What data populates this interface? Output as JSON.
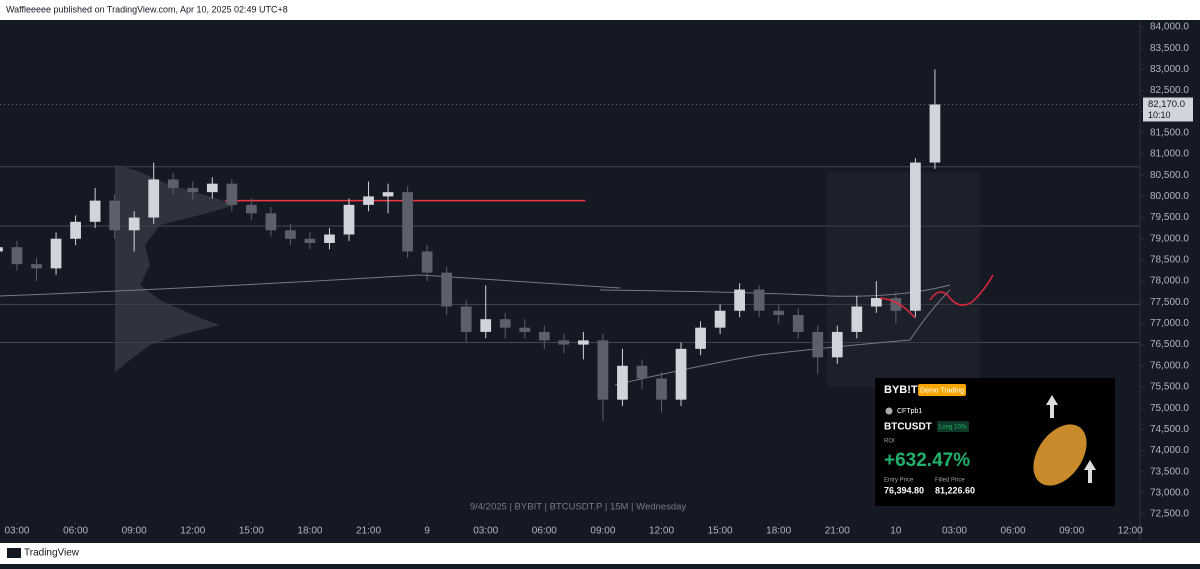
{
  "header": {
    "text": "Waffleeeee published on TradingView.com, Apr 10, 2025 02:49 UTC+8"
  },
  "chart_data": {
    "type": "candlestick",
    "watermark": "9/4/2025 | BYBIT | BTCUSDT.P | 15M | Wednesday",
    "up_color": "#d1d4dc",
    "down_color": "#5d606b",
    "x": [
      -1,
      0,
      1,
      2,
      3,
      4,
      5,
      6,
      7,
      8,
      9,
      10,
      11,
      12,
      13,
      14,
      15,
      16,
      17,
      18,
      19,
      20,
      21,
      22,
      23,
      24,
      25,
      26,
      27,
      28,
      29,
      30,
      31,
      32,
      33,
      34,
      35,
      36,
      37,
      38,
      39,
      40,
      41,
      42,
      43,
      44,
      45,
      46,
      47
    ],
    "candles": [
      [
        78700,
        78950,
        78550,
        78800
      ],
      [
        78800,
        78950,
        78250,
        78400
      ],
      [
        78400,
        78550,
        78000,
        78300
      ],
      [
        78300,
        79150,
        78150,
        79000
      ],
      [
        79000,
        79550,
        78850,
        79400
      ],
      [
        79400,
        80200,
        79250,
        79900
      ],
      [
        79900,
        80050,
        79000,
        79200
      ],
      [
        79200,
        79650,
        78700,
        79500
      ],
      [
        79500,
        80800,
        79350,
        80400
      ],
      [
        80400,
        80550,
        80050,
        80200
      ],
      [
        80200,
        80350,
        79900,
        80100
      ],
      [
        80100,
        80450,
        79950,
        80300
      ],
      [
        80300,
        80400,
        79650,
        79800
      ],
      [
        79800,
        79950,
        79450,
        79600
      ],
      [
        79600,
        79750,
        79050,
        79200
      ],
      [
        79200,
        79350,
        78850,
        79000
      ],
      [
        79000,
        79150,
        78750,
        78900
      ],
      [
        78900,
        79250,
        78750,
        79100
      ],
      [
        79100,
        79950,
        78950,
        79800
      ],
      [
        79800,
        80350,
        79650,
        80000
      ],
      [
        80000,
        80300,
        79600,
        80100
      ],
      [
        80100,
        80250,
        78550,
        78700
      ],
      [
        78700,
        78850,
        78000,
        78200
      ],
      [
        78200,
        78350,
        77200,
        77400
      ],
      [
        77400,
        77550,
        76550,
        76800
      ],
      [
        76800,
        77900,
        76650,
        77100
      ],
      [
        77100,
        77250,
        76650,
        76900
      ],
      [
        76900,
        77100,
        76650,
        76800
      ],
      [
        76800,
        76950,
        76400,
        76600
      ],
      [
        76600,
        76750,
        76300,
        76500
      ],
      [
        76500,
        76800,
        76150,
        76600
      ],
      [
        76600,
        76750,
        74700,
        75200
      ],
      [
        75200,
        76400,
        75050,
        76000
      ],
      [
        76000,
        76150,
        75450,
        75700
      ],
      [
        75700,
        75850,
        74900,
        75200
      ],
      [
        75200,
        76550,
        75050,
        76400
      ],
      [
        76400,
        77050,
        76250,
        76900
      ],
      [
        76900,
        77450,
        76750,
        77300
      ],
      [
        77300,
        77950,
        77150,
        77800
      ],
      [
        77800,
        77900,
        77150,
        77300
      ],
      [
        77300,
        77450,
        77000,
        77200
      ],
      [
        77200,
        77350,
        76650,
        76800
      ],
      [
        76800,
        76950,
        75800,
        76200
      ],
      [
        76200,
        76950,
        76050,
        76800
      ],
      [
        76800,
        77650,
        76650,
        77400
      ],
      [
        77400,
        78000,
        77250,
        77600
      ],
      [
        77600,
        77750,
        77000,
        77300
      ],
      [
        77300,
        80900,
        77150,
        80800
      ],
      [
        80800,
        83000,
        80650,
        82170
      ]
    ],
    "xlim": [
      -0.87,
      57.5
    ],
    "xticks": [
      {
        "value": 0,
        "label": "03:00"
      },
      {
        "value": 3,
        "label": "06:00"
      },
      {
        "value": 6,
        "label": "09:00"
      },
      {
        "value": 9,
        "label": "12:00"
      },
      {
        "value": 12,
        "label": "15:00"
      },
      {
        "value": 15,
        "label": "18:00"
      },
      {
        "value": 18,
        "label": "21:00"
      },
      {
        "value": 21,
        "label": "9"
      },
      {
        "value": 24,
        "label": "03:00"
      },
      {
        "value": 27,
        "label": "06:00"
      },
      {
        "value": 30,
        "label": "09:00"
      },
      {
        "value": 33,
        "label": "12:00"
      },
      {
        "value": 36,
        "label": "15:00"
      },
      {
        "value": 39,
        "label": "18:00"
      },
      {
        "value": 42,
        "label": "21:00"
      },
      {
        "value": 45,
        "label": "10"
      },
      {
        "value": 48,
        "label": "03:00"
      },
      {
        "value": 51,
        "label": "06:00"
      },
      {
        "value": 54,
        "label": "09:00"
      },
      {
        "value": 57,
        "label": "12:00"
      }
    ],
    "ylim": [
      72500,
      84000
    ],
    "yticks": [
      {
        "value": 72500,
        "label": "72,500.0"
      },
      {
        "value": 73000,
        "label": "73,000.0"
      },
      {
        "value": 73500,
        "label": "73,500.0"
      },
      {
        "value": 74000,
        "label": "74,000.0"
      },
      {
        "value": 74500,
        "label": "74,500.0"
      },
      {
        "value": 75000,
        "label": "75,000.0"
      },
      {
        "value": 75500,
        "label": "75,500.0"
      },
      {
        "value": 76000,
        "label": "76,000.0"
      },
      {
        "value": 76500,
        "label": "76,500.0"
      },
      {
        "value": 77000,
        "label": "77,000.0"
      },
      {
        "value": 77500,
        "label": "77,500.0"
      },
      {
        "value": 78000,
        "label": "78,000.0"
      },
      {
        "value": 78500,
        "label": "78,500.0"
      },
      {
        "value": 79000,
        "label": "79,000.0"
      },
      {
        "value": 79500,
        "label": "79,500.0"
      },
      {
        "value": 80000,
        "label": "80,000.0"
      },
      {
        "value": 80500,
        "label": "80,500.0"
      },
      {
        "value": 81000,
        "label": "81,000.0"
      },
      {
        "value": 81500,
        "label": "81,500.0"
      },
      {
        "value": 82000,
        "label": "82,000.0"
      },
      {
        "value": 82500,
        "label": "82,500.0"
      },
      {
        "value": 83000,
        "label": "83,000.0"
      },
      {
        "value": 83500,
        "label": "83,500.0"
      },
      {
        "value": 84000,
        "label": "84,000.0"
      }
    ],
    "levels": [
      80700,
      79300,
      77450,
      76550
    ],
    "red_level": {
      "value": 79900,
      "x": [
        10.65,
        29.1
      ],
      "color": "#f23645"
    },
    "last_price": {
      "value": 82170,
      "label": "82,170.0",
      "countdown": "10:10"
    }
  },
  "card": {
    "brand": "BYB!T",
    "badge": "Demo Trading",
    "user": "CFTpb1",
    "symbol": "BTCUSDT",
    "side": "Long 100x",
    "roi_label": "ROI",
    "roi": "+632.47%",
    "entry_label": "Entry Price",
    "filled_label": "Filled Price",
    "entry": "76,394.80",
    "filled": "81,226.60"
  },
  "footer": {
    "brand": "TradingView"
  }
}
